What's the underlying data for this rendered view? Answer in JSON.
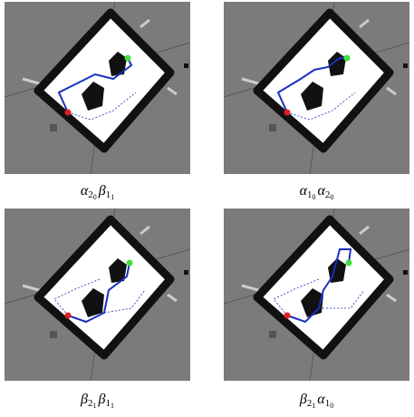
{
  "panels": [
    {
      "caption": [
        {
          "symbol": "α",
          "index": "2",
          "subindex": "0"
        },
        {
          "symbol": "β",
          "index": "1",
          "subindex": "1"
        }
      ]
    },
    {
      "caption": [
        {
          "symbol": "α",
          "index": "1",
          "subindex": "0"
        },
        {
          "symbol": "α",
          "index": "2",
          "subindex": "0"
        }
      ]
    },
    {
      "caption": [
        {
          "symbol": "β",
          "index": "2",
          "subindex": "1"
        },
        {
          "symbol": "β",
          "index": "1",
          "subindex": "1"
        }
      ]
    },
    {
      "caption": [
        {
          "symbol": "β",
          "index": "2",
          "subindex": "1"
        },
        {
          "symbol": "α",
          "index": "1",
          "subindex": "0"
        }
      ]
    }
  ]
}
